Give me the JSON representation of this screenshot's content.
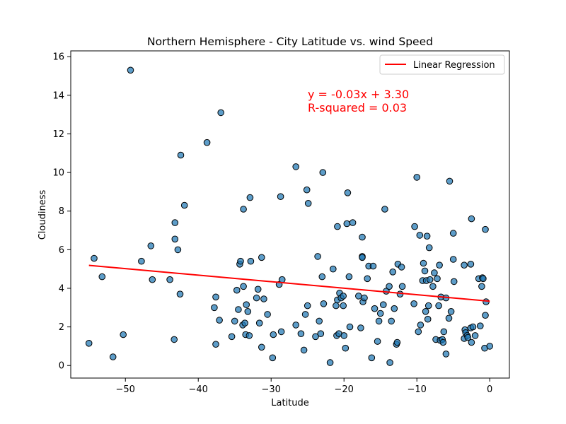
{
  "chart_data": {
    "type": "scatter",
    "title": "Northern Hemisphere - City Latitude vs. wind Speed",
    "xlabel": "Latitude",
    "ylabel": "Cloudiness",
    "xlim": [
      -57.5,
      2.7
    ],
    "ylim": [
      -0.65,
      16.3
    ],
    "xticks": [
      -50,
      -40,
      -30,
      -20,
      -10,
      0
    ],
    "xtick_labels": [
      "−50",
      "−40",
      "−30",
      "−20",
      "−10",
      "0"
    ],
    "yticks": [
      0,
      2,
      4,
      6,
      8,
      10,
      12,
      14,
      16
    ],
    "ytick_labels": [
      "0",
      "2",
      "4",
      "6",
      "8",
      "10",
      "12",
      "14",
      "16"
    ],
    "grid": false,
    "legend": {
      "position": "upper-right",
      "entries": [
        "Linear Regression"
      ]
    },
    "annotation": {
      "lines": [
        "y = -0.03x + 3.30",
        "R-squared = 0.03"
      ],
      "color": "#ff0000"
    },
    "colors": {
      "points": "#1f77b4",
      "point_edge": "#000000",
      "regression": "#ff0000"
    },
    "regression": {
      "slope": -0.0338,
      "intercept": 3.33,
      "x_range": [
        -55.0,
        0.0
      ]
    },
    "points": [
      [
        -55.0,
        1.15
      ],
      [
        -54.3,
        5.55
      ],
      [
        -53.2,
        4.6
      ],
      [
        -51.7,
        0.45
      ],
      [
        -50.3,
        1.6
      ],
      [
        -49.3,
        15.3
      ],
      [
        -47.8,
        5.4
      ],
      [
        -46.5,
        6.2
      ],
      [
        -46.3,
        4.45
      ],
      [
        -43.9,
        4.45
      ],
      [
        -43.3,
        1.35
      ],
      [
        -43.2,
        6.55
      ],
      [
        -43.2,
        7.4
      ],
      [
        -42.8,
        6.0
      ],
      [
        -42.5,
        3.7
      ],
      [
        -42.4,
        10.9
      ],
      [
        -41.9,
        8.3
      ],
      [
        -38.8,
        11.55
      ],
      [
        -37.8,
        3.0
      ],
      [
        -37.6,
        1.1
      ],
      [
        -37.6,
        3.55
      ],
      [
        -37.1,
        2.35
      ],
      [
        -36.9,
        13.1
      ],
      [
        -35.4,
        1.5
      ],
      [
        -35.0,
        2.3
      ],
      [
        -34.7,
        3.9
      ],
      [
        -34.5,
        2.9
      ],
      [
        -34.3,
        5.25
      ],
      [
        -34.2,
        5.4
      ],
      [
        -33.9,
        2.1
      ],
      [
        -33.8,
        8.1
      ],
      [
        -33.8,
        4.1
      ],
      [
        -33.6,
        2.2
      ],
      [
        -33.5,
        1.6
      ],
      [
        -33.4,
        3.15
      ],
      [
        -33.2,
        2.8
      ],
      [
        -33.0,
        1.55
      ],
      [
        -32.9,
        8.7
      ],
      [
        -32.8,
        5.4
      ],
      [
        -32.0,
        3.5
      ],
      [
        -31.8,
        3.95
      ],
      [
        -31.6,
        2.2
      ],
      [
        -31.3,
        5.6
      ],
      [
        -31.3,
        0.95
      ],
      [
        -31.0,
        3.45
      ],
      [
        -30.5,
        2.65
      ],
      [
        -29.8,
        0.4
      ],
      [
        -29.7,
        1.6
      ],
      [
        -28.9,
        4.2
      ],
      [
        -28.7,
        8.75
      ],
      [
        -28.6,
        1.75
      ],
      [
        -28.5,
        4.45
      ],
      [
        -26.6,
        10.3
      ],
      [
        -26.6,
        2.1
      ],
      [
        -25.9,
        1.65
      ],
      [
        -25.5,
        0.8
      ],
      [
        -25.3,
        2.65
      ],
      [
        -25.1,
        9.1
      ],
      [
        -25.0,
        3.1
      ],
      [
        -24.9,
        8.4
      ],
      [
        -23.9,
        1.5
      ],
      [
        -23.6,
        5.65
      ],
      [
        -23.4,
        2.3
      ],
      [
        -23.2,
        1.65
      ],
      [
        -23.0,
        4.6
      ],
      [
        -22.9,
        10.0
      ],
      [
        -22.8,
        3.2
      ],
      [
        -21.9,
        0.15
      ],
      [
        -21.5,
        5.0
      ],
      [
        -21.1,
        3.1
      ],
      [
        -21.0,
        1.55
      ],
      [
        -20.9,
        7.2
      ],
      [
        -20.9,
        3.4
      ],
      [
        -20.7,
        1.65
      ],
      [
        -20.6,
        3.75
      ],
      [
        -20.4,
        3.5
      ],
      [
        -20.1,
        3.6
      ],
      [
        -20.1,
        3.1
      ],
      [
        -20.0,
        1.55
      ],
      [
        -19.8,
        0.9
      ],
      [
        -19.6,
        7.35
      ],
      [
        -19.5,
        8.95
      ],
      [
        -19.3,
        4.6
      ],
      [
        -19.2,
        2.0
      ],
      [
        -18.8,
        7.4
      ],
      [
        -18.0,
        3.6
      ],
      [
        -17.7,
        1.95
      ],
      [
        -17.5,
        5.65
      ],
      [
        -17.5,
        5.6
      ],
      [
        -17.5,
        6.65
      ],
      [
        -17.4,
        3.3
      ],
      [
        -17.2,
        3.5
      ],
      [
        -16.8,
        4.5
      ],
      [
        -16.6,
        5.15
      ],
      [
        -16.2,
        0.4
      ],
      [
        -16.0,
        5.15
      ],
      [
        -15.8,
        2.95
      ],
      [
        -15.4,
        1.25
      ],
      [
        -15.2,
        2.3
      ],
      [
        -15.0,
        2.7
      ],
      [
        -14.6,
        3.15
      ],
      [
        -14.4,
        8.1
      ],
      [
        -14.2,
        3.85
      ],
      [
        -13.8,
        4.1
      ],
      [
        -13.7,
        0.15
      ],
      [
        -13.5,
        2.3
      ],
      [
        -13.3,
        4.85
      ],
      [
        -13.1,
        2.95
      ],
      [
        -12.8,
        1.1
      ],
      [
        -12.7,
        1.2
      ],
      [
        -12.6,
        5.25
      ],
      [
        -12.3,
        3.7
      ],
      [
        -12.1,
        5.1
      ],
      [
        -12.0,
        4.1
      ],
      [
        -10.4,
        3.2
      ],
      [
        -10.3,
        7.2
      ],
      [
        -10.0,
        9.75
      ],
      [
        -9.8,
        1.75
      ],
      [
        -9.6,
        6.75
      ],
      [
        -9.5,
        2.1
      ],
      [
        -9.2,
        4.4
      ],
      [
        -9.1,
        5.3
      ],
      [
        -8.9,
        4.9
      ],
      [
        -8.8,
        2.8
      ],
      [
        -8.7,
        4.4
      ],
      [
        -8.6,
        6.7
      ],
      [
        -8.5,
        2.4
      ],
      [
        -8.4,
        3.1
      ],
      [
        -8.3,
        6.1
      ],
      [
        -8.2,
        4.45
      ],
      [
        -7.8,
        4.1
      ],
      [
        -7.6,
        4.8
      ],
      [
        -7.4,
        1.35
      ],
      [
        -7.2,
        4.5
      ],
      [
        -7.0,
        3.1
      ],
      [
        -6.9,
        5.2
      ],
      [
        -6.8,
        1.3
      ],
      [
        -6.7,
        3.55
      ],
      [
        -6.5,
        1.35
      ],
      [
        -6.4,
        1.2
      ],
      [
        -6.3,
        1.75
      ],
      [
        -6.0,
        0.6
      ],
      [
        -6.0,
        3.5
      ],
      [
        -5.6,
        2.45
      ],
      [
        -5.5,
        9.55
      ],
      [
        -5.3,
        2.8
      ],
      [
        -5.0,
        6.85
      ],
      [
        -5.0,
        5.5
      ],
      [
        -4.9,
        4.35
      ],
      [
        -3.5,
        5.2
      ],
      [
        -3.5,
        1.4
      ],
      [
        -3.4,
        1.85
      ],
      [
        -3.3,
        1.7
      ],
      [
        -3.1,
        1.55
      ],
      [
        -3.0,
        1.45
      ],
      [
        -2.6,
        1.95
      ],
      [
        -2.6,
        5.25
      ],
      [
        -2.5,
        7.6
      ],
      [
        -2.5,
        1.2
      ],
      [
        -2.3,
        2.0
      ],
      [
        -2.0,
        1.55
      ],
      [
        -1.5,
        4.5
      ],
      [
        -1.3,
        2.05
      ],
      [
        -1.1,
        4.1
      ],
      [
        -1.0,
        4.55
      ],
      [
        -0.9,
        4.5
      ],
      [
        -0.7,
        0.9
      ],
      [
        -0.6,
        7.05
      ],
      [
        -0.6,
        2.6
      ],
      [
        -0.5,
        3.3
      ],
      [
        0.0,
        1.0
      ]
    ]
  }
}
